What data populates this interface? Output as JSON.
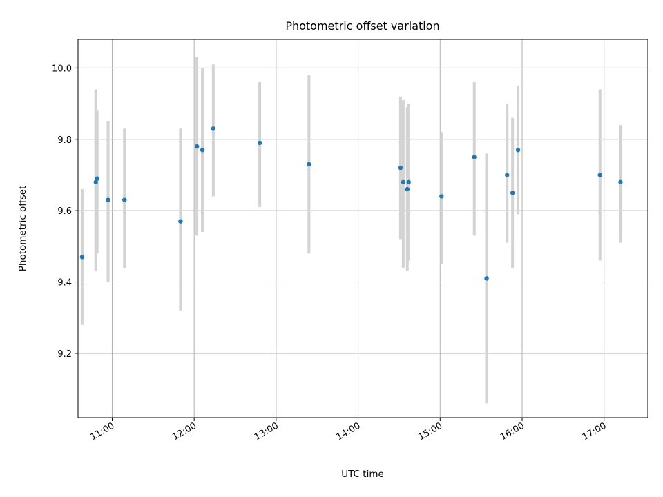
{
  "chart_data": {
    "type": "scatter",
    "title": "Photometric offset variation",
    "xlabel": "UTC time",
    "ylabel": "Photometric offset",
    "x_unit": "hours UTC",
    "xlim": [
      "10:35",
      "17:32"
    ],
    "ylim": [
      9.02,
      10.08
    ],
    "grid": true,
    "x_ticks": [
      "11:00",
      "12:00",
      "13:00",
      "14:00",
      "15:00",
      "16:00",
      "17:00"
    ],
    "y_ticks": [
      "9.2",
      "9.4",
      "9.6",
      "9.8",
      "10.0"
    ],
    "marker_color": "#1f77b4",
    "errorbar_color": "#d3d3d3",
    "points": [
      {
        "x": "10:38",
        "y": 9.47,
        "err_low": 9.28,
        "err_high": 9.66
      },
      {
        "x": "10:48",
        "y": 9.68,
        "err_low": 9.43,
        "err_high": 9.94
      },
      {
        "x": "10:49",
        "y": 9.69,
        "err_low": 9.48,
        "err_high": 9.88
      },
      {
        "x": "10:57",
        "y": 9.63,
        "err_low": 9.4,
        "err_high": 9.85
      },
      {
        "x": "11:09",
        "y": 9.63,
        "err_low": 9.44,
        "err_high": 9.83
      },
      {
        "x": "11:50",
        "y": 9.57,
        "err_low": 9.32,
        "err_high": 9.83
      },
      {
        "x": "12:02",
        "y": 9.78,
        "err_low": 9.53,
        "err_high": 10.03
      },
      {
        "x": "12:06",
        "y": 9.77,
        "err_low": 9.54,
        "err_high": 10.0
      },
      {
        "x": "12:14",
        "y": 9.83,
        "err_low": 9.64,
        "err_high": 10.01
      },
      {
        "x": "12:48",
        "y": 9.79,
        "err_low": 9.61,
        "err_high": 9.96
      },
      {
        "x": "13:24",
        "y": 9.73,
        "err_low": 9.48,
        "err_high": 9.98
      },
      {
        "x": "14:31",
        "y": 9.72,
        "err_low": 9.52,
        "err_high": 9.92
      },
      {
        "x": "14:33",
        "y": 9.68,
        "err_low": 9.44,
        "err_high": 9.91
      },
      {
        "x": "14:36",
        "y": 9.66,
        "err_low": 9.43,
        "err_high": 9.89
      },
      {
        "x": "14:37",
        "y": 9.68,
        "err_low": 9.46,
        "err_high": 9.9
      },
      {
        "x": "15:01",
        "y": 9.64,
        "err_low": 9.45,
        "err_high": 9.82
      },
      {
        "x": "15:25",
        "y": 9.75,
        "err_low": 9.53,
        "err_high": 9.96
      },
      {
        "x": "15:34",
        "y": 9.41,
        "err_low": 9.06,
        "err_high": 9.76
      },
      {
        "x": "15:49",
        "y": 9.7,
        "err_low": 9.51,
        "err_high": 9.9
      },
      {
        "x": "15:53",
        "y": 9.65,
        "err_low": 9.44,
        "err_high": 9.86
      },
      {
        "x": "15:57",
        "y": 9.77,
        "err_low": 9.59,
        "err_high": 9.95
      },
      {
        "x": "16:57",
        "y": 9.7,
        "err_low": 9.46,
        "err_high": 9.94
      },
      {
        "x": "17:12",
        "y": 9.68,
        "err_low": 9.51,
        "err_high": 9.84
      }
    ]
  }
}
